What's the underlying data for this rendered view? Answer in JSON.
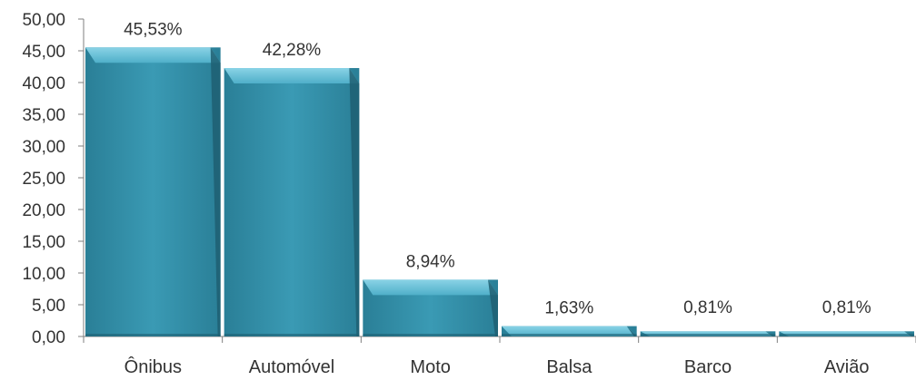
{
  "chart_data": {
    "type": "bar",
    "title": "",
    "xlabel": "",
    "ylabel": "",
    "ylim": [
      0,
      50
    ],
    "yticks": [
      "0,00",
      "5,00",
      "10,00",
      "15,00",
      "20,00",
      "25,00",
      "30,00",
      "35,00",
      "40,00",
      "45,00",
      "50,00"
    ],
    "categories": [
      "Ônibus",
      "Automóvel",
      "Moto",
      "Balsa",
      "Barco",
      "Avião"
    ],
    "values": [
      45.53,
      42.28,
      8.94,
      1.63,
      0.81,
      0.81
    ],
    "data_labels": [
      "45,53%",
      "42,28%",
      "8,94%",
      "1,63%",
      "0,81%",
      "0,81%"
    ],
    "grid": false,
    "bar_color": "#2E8AA3",
    "bar_top_color": "#6CC3DB",
    "bar_side_color": "#1E5F72",
    "legend": "none"
  }
}
